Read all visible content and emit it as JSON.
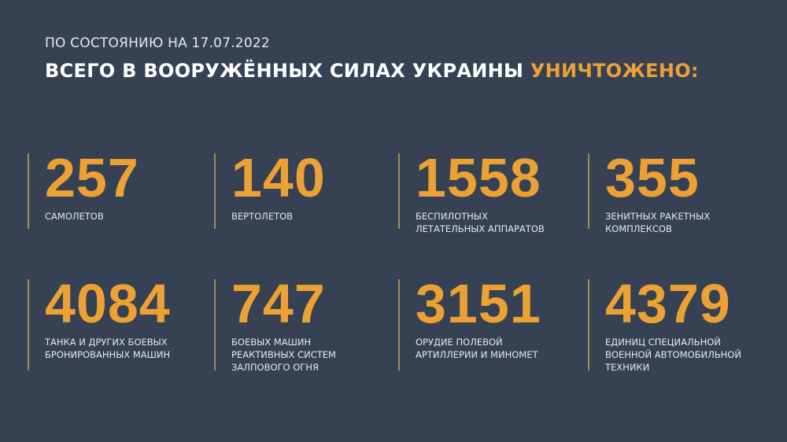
{
  "header": {
    "subtitle": "ПО СОСТОЯНИЮ НА 17.07.2022",
    "title_main": "ВСЕГО В ВООРУЖЁННЫХ СИЛАХ УКРАИНЫ",
    "title_accent": "УНИЧТОЖЕНО:"
  },
  "accent_color": "#eba134",
  "background_color": "#364154",
  "stats": [
    {
      "value": "257",
      "label": "САМОЛЕТОВ"
    },
    {
      "value": "140",
      "label": "ВЕРТОЛЕТОВ"
    },
    {
      "value": "1558",
      "label": "БЕСПИЛОТНЫХ\nЛЕТАТЕЛЬНЫХ АППАРАТОВ"
    },
    {
      "value": "355",
      "label": "ЗЕНИТНЫХ РАКЕТНЫХ\nКОМПЛЕКСОВ"
    },
    {
      "value": "4084",
      "label": "ТАНКА И ДРУГИХ БОЕВЫХ\nБРОНИРОВАННЫХ МАШИН"
    },
    {
      "value": "747",
      "label": "БОЕВЫХ МАШИН\nРЕАКТИВНЫХ СИСТЕМ\nЗАЛПОВОГО ОГНЯ"
    },
    {
      "value": "3151",
      "label": "ОРУДИЕ ПОЛЕВОЙ\nАРТИЛЛЕРИИ И МИНОМЕТ"
    },
    {
      "value": "4379",
      "label": "ЕДИНИЦ СПЕЦИАЛЬНОЙ\nВОЕННОЙ АВТОМОБИЛЬНОЙ\nТЕХНИКИ"
    }
  ]
}
